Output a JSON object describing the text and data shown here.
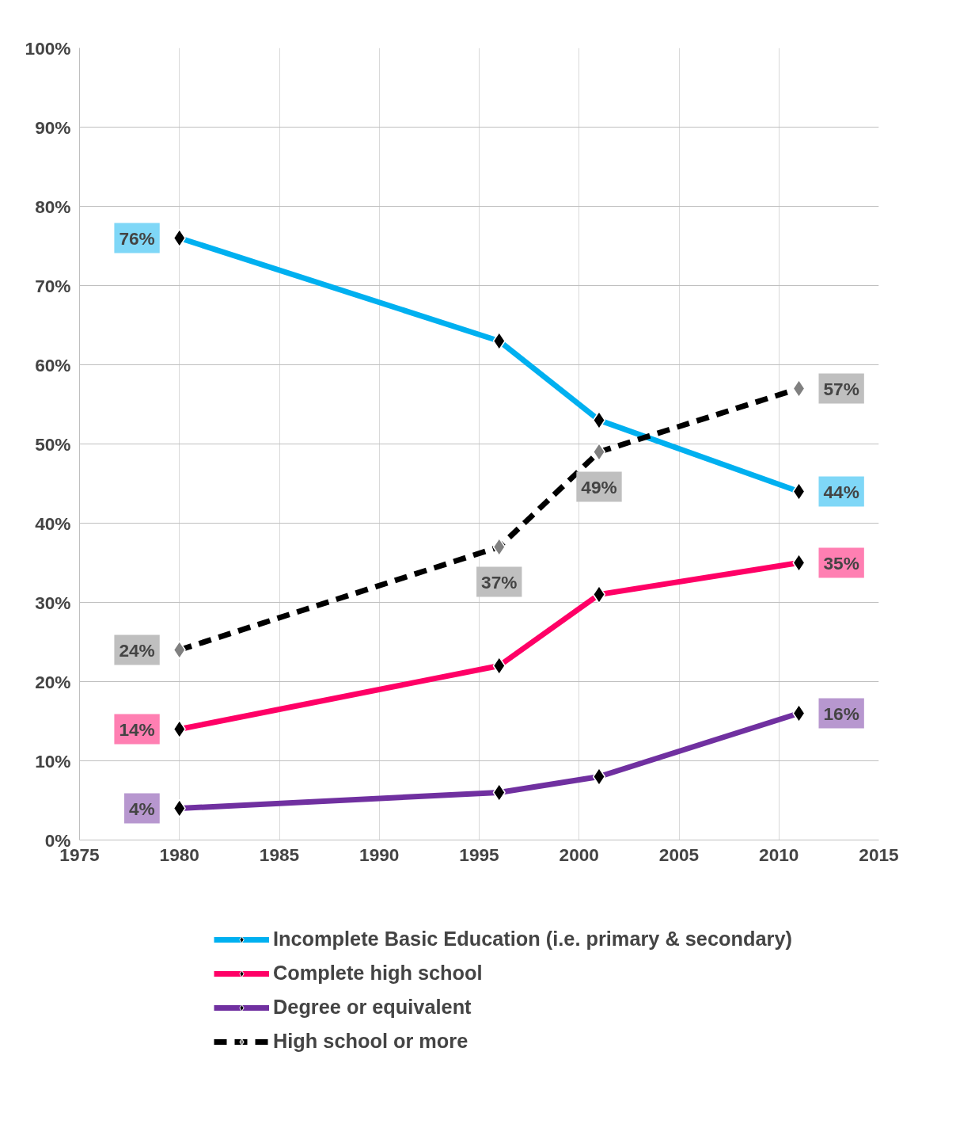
{
  "chart_data": {
    "type": "line",
    "x": [
      1980,
      1996,
      2001,
      2011
    ],
    "series": [
      {
        "name": "Incomplete Basic Education (i.e. primary & secondary)",
        "color": "#00b0f0",
        "values": [
          76,
          63,
          53,
          44
        ],
        "value_labels": [
          "76%",
          null,
          null,
          "44%"
        ]
      },
      {
        "name": "Complete high school",
        "color": "#ff0066",
        "values": [
          14,
          22,
          31,
          35
        ],
        "value_labels": [
          "14%",
          null,
          null,
          "35%"
        ]
      },
      {
        "name": "Degree or equivalent",
        "color": "#7030a0",
        "values": [
          4,
          6,
          8,
          16
        ],
        "value_labels": [
          "4%",
          null,
          null,
          "16%"
        ]
      },
      {
        "name": "High school or more",
        "color": "#000000",
        "values": [
          24,
          37,
          49,
          57
        ],
        "value_labels": [
          "24%",
          "37%",
          "49%",
          "57%"
        ],
        "line_style": "dashed"
      }
    ],
    "xlim": [
      1975,
      2015
    ],
    "xticks": [
      1975,
      1980,
      1985,
      1990,
      1995,
      2000,
      2005,
      2010,
      2015
    ],
    "ylim": [
      0,
      100
    ],
    "yticks": [
      {
        "value": 0,
        "label": "0%"
      },
      {
        "value": 10,
        "label": "10%"
      },
      {
        "value": 20,
        "label": "20%"
      },
      {
        "value": 30,
        "label": "30%"
      },
      {
        "value": 40,
        "label": "40%"
      },
      {
        "value": 50,
        "label": "50%"
      },
      {
        "value": 60,
        "label": "60%"
      },
      {
        "value": 70,
        "label": "70%"
      },
      {
        "value": 80,
        "label": "80%"
      },
      {
        "value": 90,
        "label": "90%"
      },
      {
        "value": 100,
        "label": "100%"
      }
    ],
    "grid": true,
    "legend": "bottom",
    "marker": "diamond",
    "line_style": "solid"
  }
}
